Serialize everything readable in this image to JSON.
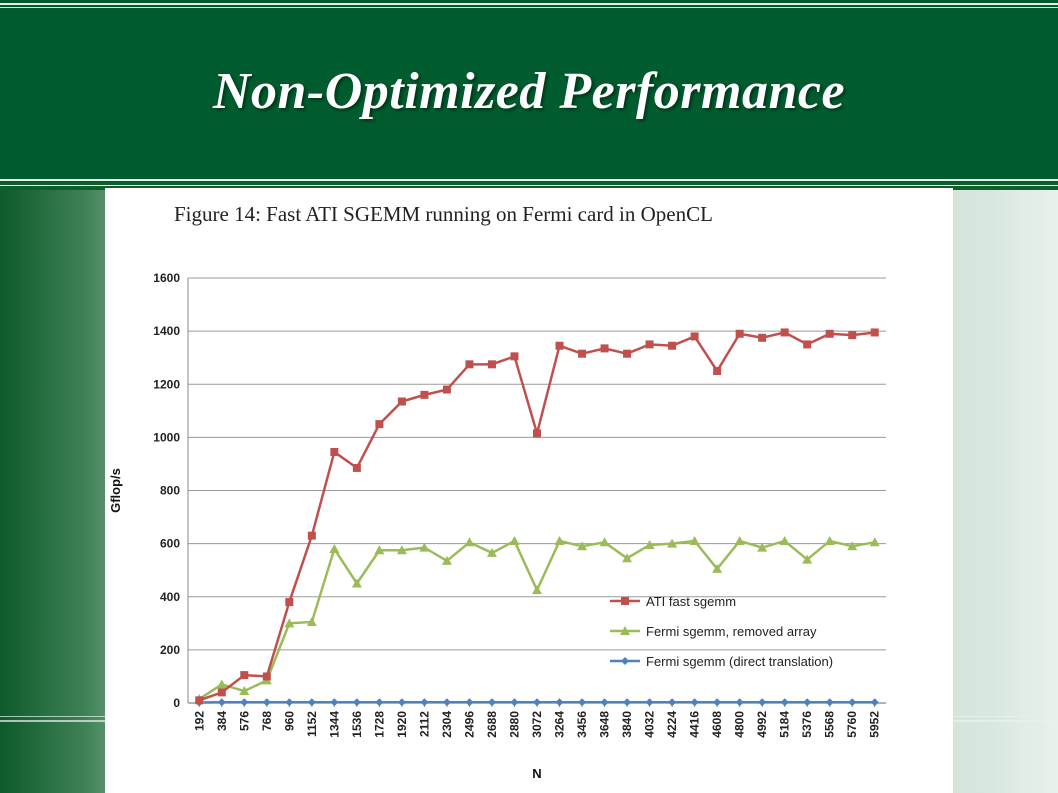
{
  "slide": {
    "title": "Non-Optimized Performance"
  },
  "figure": {
    "caption": "Figure 14: Fast ATI SGEMM running on Fermi card in OpenCL"
  },
  "colors": {
    "header_green": "#005c2e",
    "series_red": "#c0504d",
    "series_green": "#9bbb59",
    "series_blue": "#4f81bd"
  },
  "chart_data": {
    "type": "line",
    "xlabel": "N",
    "ylabel": "Gflop/s",
    "ylim": [
      0,
      1600
    ],
    "yticks": [
      0,
      200,
      400,
      600,
      800,
      1000,
      1200,
      1400,
      1600
    ],
    "grid": true,
    "legend_position": "bottom-right",
    "x": [
      "192",
      "384",
      "576",
      "768",
      "960",
      "1152",
      "1344",
      "1536",
      "1728",
      "1920",
      "2112",
      "2304",
      "2496",
      "2688",
      "2880",
      "3072",
      "3264",
      "3456",
      "3648",
      "3840",
      "4032",
      "4224",
      "4416",
      "4608",
      "4800",
      "4992",
      "5184",
      "5376",
      "5568",
      "5760",
      "5952"
    ],
    "series": [
      {
        "name": "ATI fast sgemm",
        "color": "#c0504d",
        "marker": "square",
        "values": [
          10,
          40,
          105,
          100,
          380,
          630,
          945,
          885,
          1050,
          1135,
          1160,
          1180,
          1275,
          1275,
          1305,
          1015,
          1345,
          1315,
          1335,
          1315,
          1350,
          1345,
          1380,
          1250,
          1390,
          1375,
          1395,
          1350,
          1390,
          1385,
          1395
        ]
      },
      {
        "name": "Fermi sgemm, removed array",
        "color": "#9bbb59",
        "marker": "triangle",
        "values": [
          15,
          70,
          45,
          85,
          300,
          305,
          580,
          450,
          575,
          575,
          585,
          535,
          605,
          565,
          610,
          425,
          610,
          590,
          605,
          545,
          595,
          600,
          610,
          505,
          610,
          585,
          610,
          540,
          610,
          590,
          605
        ]
      },
      {
        "name": "Fermi sgemm (direct translation)",
        "color": "#4f81bd",
        "marker": "diamond",
        "values": [
          2,
          3,
          3,
          3,
          3,
          3,
          3,
          3,
          3,
          3,
          3,
          3,
          3,
          3,
          3,
          3,
          3,
          3,
          3,
          3,
          3,
          3,
          3,
          3,
          3,
          3,
          3,
          3,
          3,
          3,
          3
        ]
      }
    ]
  }
}
